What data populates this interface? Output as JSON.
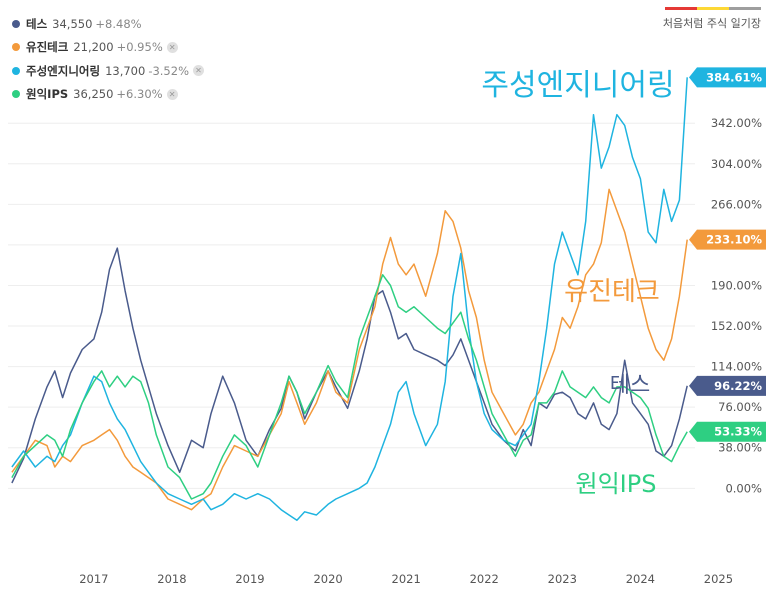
{
  "brand": {
    "label": "처음처럼 주식 일기장",
    "colors": [
      "#e53935",
      "#fdd835",
      "#9e9e9e"
    ]
  },
  "legend": [
    {
      "name": "테스",
      "price": "34,550",
      "change": "+8.48%",
      "color": "#4a5b8c",
      "removable": false
    },
    {
      "name": "유진테크",
      "price": "21,200",
      "change": "+0.95%",
      "color": "#f39a3c",
      "removable": true
    },
    {
      "name": "주성엔지니어링",
      "price": "13,700",
      "change": "-3.52%",
      "color": "#1fb4e0",
      "removable": true
    },
    {
      "name": "원익IPS",
      "price": "36,250",
      "change": "+6.30%",
      "color": "#2ecf82",
      "removable": true
    }
  ],
  "chart_data": {
    "type": "line",
    "x_ticks": [
      "2017",
      "2018",
      "2019",
      "2020",
      "2021",
      "2022",
      "2023",
      "2024",
      "2025"
    ],
    "y_ticks": [
      "0.00%",
      "38.00%",
      "76.00%",
      "114.00%",
      "152.00%",
      "190.00%",
      "228.00%",
      "266.00%",
      "304.00%",
      "342.00%"
    ],
    "ylim": [
      -25,
      390
    ],
    "xlim": [
      2016.4,
      2025.2
    ],
    "series": [
      {
        "name": "테스",
        "color": "#4a5b8c",
        "last_value": "96.22%",
        "big_label": "테스",
        "x": [
          2016.45,
          2016.6,
          2016.75,
          2016.9,
          2017.0,
          2017.1,
          2017.2,
          2017.35,
          2017.5,
          2017.6,
          2017.7,
          2017.8,
          2017.9,
          2018.0,
          2018.1,
          2018.2,
          2018.3,
          2018.45,
          2018.6,
          2018.75,
          2018.9,
          2019.0,
          2019.15,
          2019.3,
          2019.45,
          2019.6,
          2019.75,
          2019.9,
          2020.0,
          2020.1,
          2020.2,
          2020.35,
          2020.5,
          2020.6,
          2020.75,
          2020.9,
          2021.0,
          2021.1,
          2021.2,
          2021.3,
          2021.4,
          2021.5,
          2021.6,
          2021.75,
          2021.9,
          2022.0,
          2022.1,
          2022.2,
          2022.3,
          2022.4,
          2022.5,
          2022.6,
          2022.75,
          2022.9,
          2023.0,
          2023.1,
          2023.2,
          2023.3,
          2023.4,
          2023.5,
          2023.6,
          2023.7,
          2023.8,
          2023.9,
          2024.0,
          2024.1,
          2024.2,
          2024.3,
          2024.4,
          2024.5,
          2024.6,
          2024.7,
          2024.8,
          2024.9,
          2025.0,
          2025.1
        ],
        "y": [
          5,
          28,
          65,
          95,
          110,
          85,
          108,
          130,
          140,
          165,
          205,
          225,
          185,
          150,
          120,
          95,
          70,
          40,
          15,
          45,
          38,
          70,
          105,
          80,
          45,
          30,
          55,
          75,
          105,
          90,
          65,
          90,
          110,
          95,
          75,
          110,
          140,
          180,
          185,
          165,
          140,
          145,
          130,
          125,
          120,
          115,
          125,
          140,
          120,
          100,
          80,
          60,
          45,
          35,
          55,
          40,
          80,
          75,
          88,
          90,
          85,
          70,
          65,
          80,
          60,
          55,
          70,
          120,
          80,
          70,
          60,
          35,
          30,
          40,
          65,
          96
        ]
      },
      {
        "name": "유진테크",
        "color": "#f39a3c",
        "last_value": "233.10%",
        "big_label": "유진테크",
        "x": [
          2016.45,
          2016.6,
          2016.75,
          2016.9,
          2017.0,
          2017.1,
          2017.2,
          2017.35,
          2017.5,
          2017.6,
          2017.7,
          2017.8,
          2017.9,
          2018.0,
          2018.1,
          2018.2,
          2018.3,
          2018.45,
          2018.6,
          2018.75,
          2018.9,
          2019.0,
          2019.15,
          2019.3,
          2019.45,
          2019.6,
          2019.75,
          2019.9,
          2020.0,
          2020.1,
          2020.2,
          2020.35,
          2020.5,
          2020.6,
          2020.75,
          2020.9,
          2021.0,
          2021.1,
          2021.2,
          2021.3,
          2021.4,
          2021.5,
          2021.6,
          2021.75,
          2021.9,
          2022.0,
          2022.1,
          2022.2,
          2022.3,
          2022.4,
          2022.5,
          2022.6,
          2022.75,
          2022.9,
          2023.0,
          2023.1,
          2023.2,
          2023.3,
          2023.4,
          2023.5,
          2023.6,
          2023.7,
          2023.8,
          2023.9,
          2024.0,
          2024.1,
          2024.2,
          2024.3,
          2024.4,
          2024.5,
          2024.6,
          2024.7,
          2024.8,
          2024.9,
          2025.0,
          2025.1
        ],
        "y": [
          15,
          30,
          45,
          40,
          20,
          30,
          25,
          40,
          45,
          50,
          55,
          45,
          30,
          20,
          15,
          10,
          5,
          -10,
          -15,
          -20,
          -10,
          -5,
          20,
          40,
          35,
          30,
          50,
          70,
          100,
          80,
          60,
          80,
          110,
          90,
          80,
          130,
          150,
          170,
          210,
          235,
          210,
          200,
          210,
          180,
          220,
          260,
          250,
          225,
          185,
          160,
          120,
          90,
          70,
          50,
          60,
          80,
          90,
          110,
          130,
          160,
          150,
          170,
          200,
          210,
          230,
          280,
          260,
          240,
          210,
          180,
          150,
          130,
          120,
          140,
          180,
          233
        ]
      },
      {
        "name": "주성엔지니어링",
        "color": "#1fb4e0",
        "last_value": "384.61%",
        "big_label": "주성엔지니어링",
        "x": [
          2016.45,
          2016.6,
          2016.75,
          2016.9,
          2017.0,
          2017.1,
          2017.2,
          2017.35,
          2017.5,
          2017.6,
          2017.7,
          2017.8,
          2017.9,
          2018.0,
          2018.1,
          2018.2,
          2018.3,
          2018.45,
          2018.6,
          2018.75,
          2018.9,
          2019.0,
          2019.15,
          2019.3,
          2019.45,
          2019.6,
          2019.75,
          2019.9,
          2020.0,
          2020.1,
          2020.2,
          2020.35,
          2020.5,
          2020.6,
          2020.75,
          2020.9,
          2021.0,
          2021.1,
          2021.2,
          2021.3,
          2021.4,
          2021.5,
          2021.6,
          2021.75,
          2021.9,
          2022.0,
          2022.1,
          2022.2,
          2022.3,
          2022.4,
          2022.5,
          2022.6,
          2022.75,
          2022.9,
          2023.0,
          2023.1,
          2023.2,
          2023.3,
          2023.4,
          2023.5,
          2023.6,
          2023.7,
          2023.8,
          2023.9,
          2024.0,
          2024.1,
          2024.2,
          2024.3,
          2024.4,
          2024.5,
          2024.6,
          2024.7,
          2024.8,
          2024.9,
          2025.0,
          2025.1
        ],
        "y": [
          20,
          35,
          20,
          30,
          25,
          40,
          50,
          80,
          105,
          100,
          80,
          65,
          55,
          40,
          25,
          15,
          5,
          -5,
          -10,
          -15,
          -10,
          -20,
          -15,
          -5,
          -10,
          -5,
          -10,
          -20,
          -25,
          -30,
          -22,
          -25,
          -15,
          -10,
          -5,
          0,
          5,
          20,
          40,
          60,
          90,
          100,
          70,
          40,
          60,
          100,
          180,
          220,
          150,
          100,
          70,
          55,
          45,
          40,
          50,
          60,
          100,
          150,
          210,
          240,
          220,
          200,
          250,
          350,
          300,
          320,
          350,
          340,
          310,
          290,
          240,
          230,
          280,
          250,
          270,
          385
        ]
      },
      {
        "name": "원익IPS",
        "color": "#2ecf82",
        "last_value": "53.33%",
        "big_label": "원익IPS",
        "x": [
          2016.45,
          2016.6,
          2016.75,
          2016.9,
          2017.0,
          2017.1,
          2017.2,
          2017.35,
          2017.5,
          2017.6,
          2017.7,
          2017.8,
          2017.9,
          2018.0,
          2018.1,
          2018.2,
          2018.3,
          2018.45,
          2018.6,
          2018.75,
          2018.9,
          2019.0,
          2019.15,
          2019.3,
          2019.45,
          2019.6,
          2019.75,
          2019.9,
          2020.0,
          2020.1,
          2020.2,
          2020.35,
          2020.5,
          2020.6,
          2020.75,
          2020.9,
          2021.0,
          2021.1,
          2021.2,
          2021.3,
          2021.4,
          2021.5,
          2021.6,
          2021.75,
          2021.9,
          2022.0,
          2022.1,
          2022.2,
          2022.3,
          2022.4,
          2022.5,
          2022.6,
          2022.75,
          2022.9,
          2023.0,
          2023.1,
          2023.2,
          2023.3,
          2023.4,
          2023.5,
          2023.6,
          2023.7,
          2023.8,
          2023.9,
          2024.0,
          2024.1,
          2024.2,
          2024.3,
          2024.4,
          2024.5,
          2024.6,
          2024.7,
          2024.8,
          2024.9,
          2025.0,
          2025.1
        ],
        "y": [
          10,
          30,
          40,
          50,
          45,
          30,
          55,
          80,
          100,
          110,
          95,
          105,
          95,
          105,
          100,
          80,
          50,
          20,
          10,
          -10,
          -5,
          5,
          30,
          50,
          40,
          20,
          50,
          80,
          105,
          90,
          70,
          90,
          115,
          100,
          85,
          140,
          160,
          180,
          200,
          190,
          170,
          165,
          170,
          160,
          150,
          145,
          155,
          165,
          140,
          120,
          95,
          70,
          50,
          30,
          45,
          50,
          80,
          80,
          90,
          110,
          95,
          90,
          85,
          95,
          85,
          80,
          95,
          95,
          90,
          85,
          75,
          50,
          30,
          25,
          40,
          53
        ]
      }
    ]
  }
}
